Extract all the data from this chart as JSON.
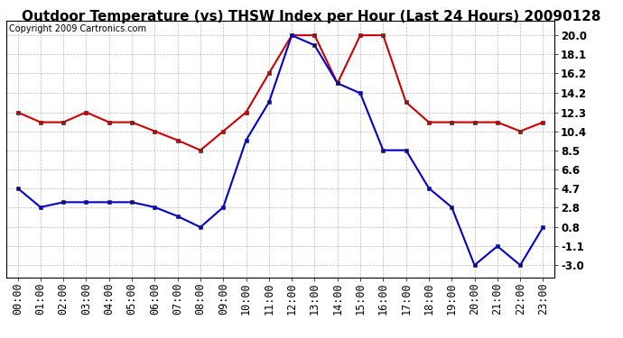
{
  "title": "Outdoor Temperature (vs) THSW Index per Hour (Last 24 Hours) 20090128",
  "copyright": "Copyright 2009 Cartronics.com",
  "hours": [
    "00:00",
    "01:00",
    "02:00",
    "03:00",
    "04:00",
    "05:00",
    "06:00",
    "07:00",
    "08:00",
    "09:00",
    "10:00",
    "11:00",
    "12:00",
    "13:00",
    "14:00",
    "15:00",
    "16:00",
    "17:00",
    "18:00",
    "19:00",
    "20:00",
    "21:00",
    "22:00",
    "23:00"
  ],
  "red_data": [
    12.3,
    11.3,
    11.3,
    12.3,
    11.3,
    11.3,
    10.4,
    9.5,
    8.5,
    10.4,
    12.3,
    16.2,
    20.0,
    20.0,
    15.2,
    20.0,
    20.0,
    13.3,
    11.3,
    11.3,
    11.3,
    11.3,
    10.4,
    11.3
  ],
  "blue_data": [
    4.7,
    2.8,
    3.3,
    3.3,
    3.3,
    3.3,
    2.8,
    1.9,
    0.8,
    2.8,
    9.5,
    13.3,
    20.0,
    19.0,
    15.2,
    14.2,
    8.5,
    8.5,
    4.7,
    2.8,
    -3.0,
    -1.1,
    -3.0,
    0.8
  ],
  "red_color": "#cc0000",
  "blue_color": "#0000cc",
  "bg_color": "#ffffff",
  "plot_bg_color": "#ffffff",
  "grid_color": "#aaaaaa",
  "yticks": [
    -3.0,
    -1.1,
    0.8,
    2.8,
    4.7,
    6.6,
    8.5,
    10.4,
    12.3,
    14.2,
    16.2,
    18.1,
    20.0
  ],
  "ylim": [
    -4.2,
    21.5
  ],
  "title_fontsize": 11,
  "copyright_fontsize": 7,
  "tick_fontsize": 8.5,
  "figwidth": 6.9,
  "figheight": 3.75,
  "dpi": 100
}
